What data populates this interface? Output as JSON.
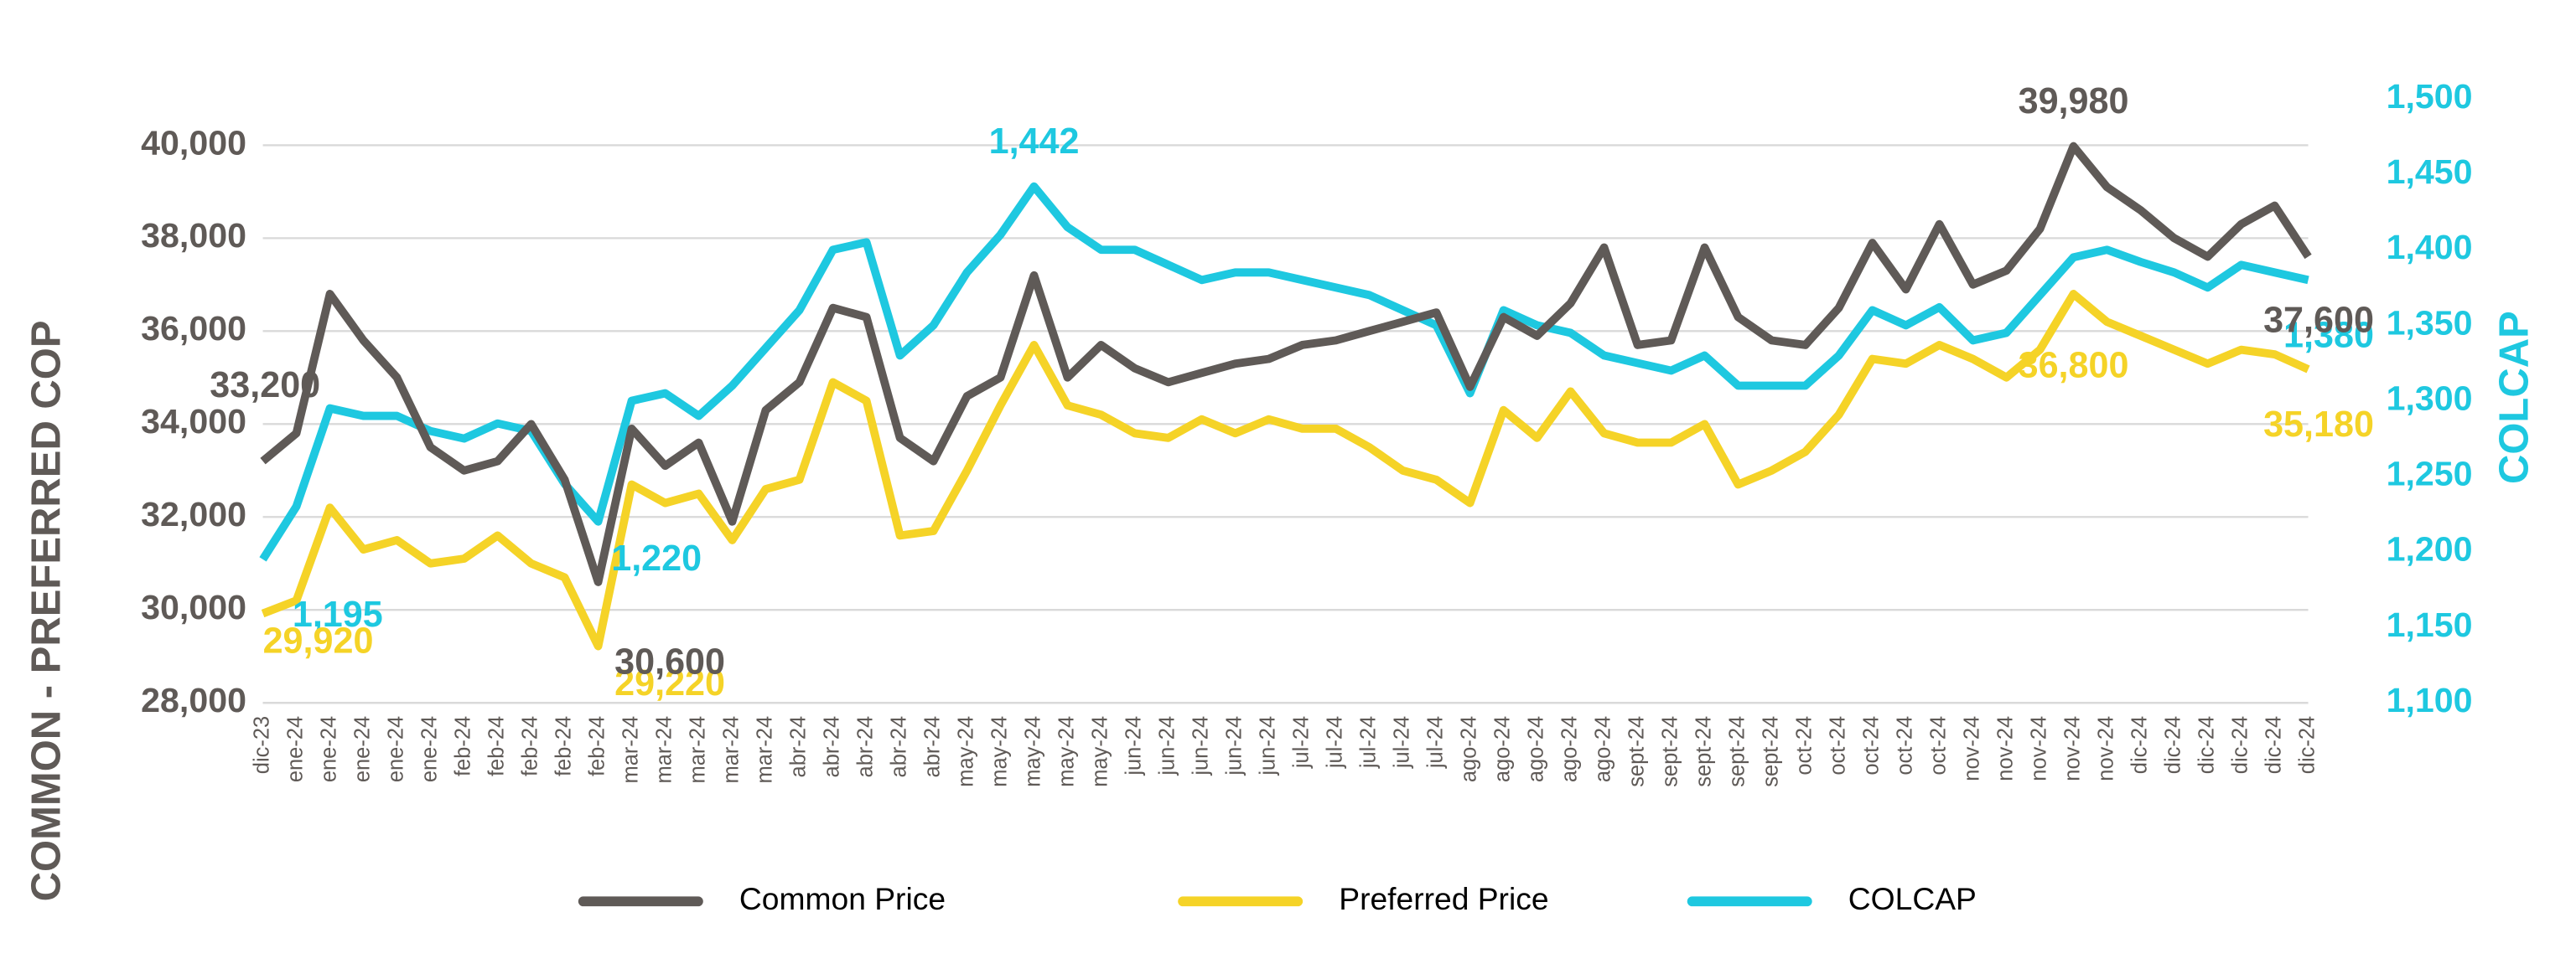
{
  "chart_data": {
    "type": "line",
    "y_label": "COMMON - PREFERRED COP",
    "y2_label": "COLCAP",
    "categories": [
      "dic-23",
      "ene-24",
      "ene-24",
      "ene-24",
      "ene-24",
      "ene-24",
      "feb-24",
      "feb-24",
      "feb-24",
      "feb-24",
      "feb-24",
      "mar-24",
      "mar-24",
      "mar-24",
      "mar-24",
      "mar-24",
      "abr-24",
      "abr-24",
      "abr-24",
      "abr-24",
      "abr-24",
      "may-24",
      "may-24",
      "may-24",
      "may-24",
      "may-24",
      "jun-24",
      "jun-24",
      "jun-24",
      "jun-24",
      "jun-24",
      "jul-24",
      "jul-24",
      "jul-24",
      "jul-24",
      "jul-24",
      "ago-24",
      "ago-24",
      "ago-24",
      "ago-24",
      "ago-24",
      "sept-24",
      "sept-24",
      "sept-24",
      "sept-24",
      "sept-24",
      "oct-24",
      "oct-24",
      "oct-24",
      "oct-24",
      "oct-24",
      "nov-24",
      "nov-24",
      "nov-24",
      "nov-24",
      "nov-24",
      "dic-24",
      "dic-24",
      "dic-24",
      "dic-24",
      "dic-24",
      "dic-24"
    ],
    "series": [
      {
        "name": "Common Price",
        "color": "#5f5a57",
        "axis": "y",
        "values": [
          33200,
          33800,
          36800,
          35800,
          35000,
          33500,
          33000,
          33200,
          34000,
          32800,
          30600,
          33900,
          33100,
          33600,
          31900,
          34300,
          34900,
          36500,
          36300,
          33700,
          33200,
          34600,
          35000,
          37200,
          35000,
          35700,
          35200,
          34900,
          35100,
          35300,
          35400,
          35700,
          35800,
          36000,
          36200,
          36400,
          34800,
          36300,
          35900,
          36600,
          37800,
          35700,
          35800,
          37800,
          36300,
          35800,
          35700,
          36500,
          37900,
          36900,
          38300,
          37000,
          37300,
          38200,
          39980,
          39100,
          38600,
          38000,
          37600,
          38300,
          38700,
          37600
        ],
        "value_labels": [
          "33,200",
          null,
          null,
          null,
          null,
          null,
          null,
          null,
          null,
          null,
          "30,600",
          null,
          null,
          null,
          null,
          null,
          null,
          null,
          null,
          null,
          null,
          null,
          null,
          null,
          null,
          null,
          null,
          null,
          null,
          null,
          null,
          null,
          null,
          null,
          null,
          null,
          null,
          null,
          null,
          null,
          null,
          null,
          null,
          null,
          null,
          null,
          null,
          null,
          null,
          null,
          null,
          null,
          null,
          null,
          "39,980",
          null,
          null,
          null,
          null,
          null,
          null,
          "37,600"
        ]
      },
      {
        "name": "Preferred Price",
        "color": "#f5d327",
        "axis": "y",
        "values": [
          29920,
          30200,
          32200,
          31300,
          31500,
          31000,
          31100,
          31600,
          31000,
          30700,
          29220,
          32700,
          32300,
          32500,
          31500,
          32600,
          32800,
          34900,
          34500,
          31600,
          31700,
          33000,
          34400,
          35700,
          34400,
          34200,
          33800,
          33700,
          34100,
          33800,
          34100,
          33900,
          33900,
          33500,
          33000,
          32800,
          32300,
          34300,
          33700,
          34700,
          33800,
          33600,
          33600,
          34000,
          32700,
          33000,
          33400,
          34200,
          35400,
          35300,
          35700,
          35400,
          35000,
          35600,
          36800,
          36200,
          35900,
          35600,
          35300,
          35600,
          35500,
          35180
        ],
        "value_labels": [
          "29,920",
          null,
          null,
          null,
          null,
          null,
          null,
          null,
          null,
          null,
          "29,220",
          null,
          null,
          null,
          null,
          null,
          null,
          null,
          null,
          null,
          null,
          null,
          null,
          null,
          null,
          null,
          null,
          null,
          null,
          null,
          null,
          null,
          null,
          null,
          null,
          null,
          null,
          null,
          null,
          null,
          null,
          null,
          null,
          null,
          null,
          null,
          null,
          null,
          null,
          null,
          null,
          null,
          null,
          null,
          "36,800",
          null,
          null,
          null,
          null,
          null,
          null,
          "35,180"
        ]
      },
      {
        "name": "COLCAP",
        "color": "#1ec8e0",
        "axis": "y2",
        "values": [
          1195,
          1230,
          1295,
          1290,
          1290,
          1280,
          1275,
          1285,
          1280,
          1245,
          1220,
          1300,
          1305,
          1290,
          1310,
          1335,
          1360,
          1400,
          1405,
          1330,
          1350,
          1385,
          1410,
          1442,
          1415,
          1400,
          1400,
          1390,
          1380,
          1385,
          1385,
          1380,
          1375,
          1370,
          1360,
          1350,
          1305,
          1360,
          1350,
          1345,
          1330,
          1325,
          1320,
          1330,
          1310,
          1310,
          1310,
          1330,
          1360,
          1350,
          1362,
          1340,
          1345,
          1370,
          1395,
          1400,
          1392,
          1385,
          1375,
          1390,
          1385,
          1380
        ],
        "value_labels": [
          "1,195",
          null,
          null,
          null,
          null,
          null,
          null,
          null,
          null,
          null,
          "1,220",
          null,
          null,
          null,
          null,
          null,
          null,
          null,
          null,
          null,
          null,
          null,
          null,
          "1,442",
          null,
          null,
          null,
          null,
          null,
          null,
          null,
          null,
          null,
          null,
          null,
          null,
          null,
          null,
          null,
          null,
          null,
          null,
          null,
          null,
          null,
          null,
          null,
          null,
          null,
          null,
          null,
          null,
          null,
          null,
          null,
          null,
          null,
          null,
          null,
          null,
          null,
          "1,380"
        ]
      }
    ],
    "ylim": [
      28000,
      41000
    ],
    "yticks": [
      {
        "value": 28000,
        "label": "28,000"
      },
      {
        "value": 30000,
        "label": "30,000"
      },
      {
        "value": 32000,
        "label": "32,000"
      },
      {
        "value": 34000,
        "label": "34,000"
      },
      {
        "value": 36000,
        "label": "36,000"
      },
      {
        "value": 38000,
        "label": "38,000"
      },
      {
        "value": 40000,
        "label": "40,000"
      }
    ],
    "y2lim": [
      1100,
      1500
    ],
    "y2ticks": [
      {
        "value": 1100,
        "label": "1,100"
      },
      {
        "value": 1150,
        "label": "1,150"
      },
      {
        "value": 1200,
        "label": "1,200"
      },
      {
        "value": 1250,
        "label": "1,250"
      },
      {
        "value": 1300,
        "label": "1,300"
      },
      {
        "value": 1350,
        "label": "1,350"
      },
      {
        "value": 1400,
        "label": "1,400"
      },
      {
        "value": 1450,
        "label": "1,450"
      },
      {
        "value": 1500,
        "label": "1,500"
      }
    ],
    "grid": true
  }
}
